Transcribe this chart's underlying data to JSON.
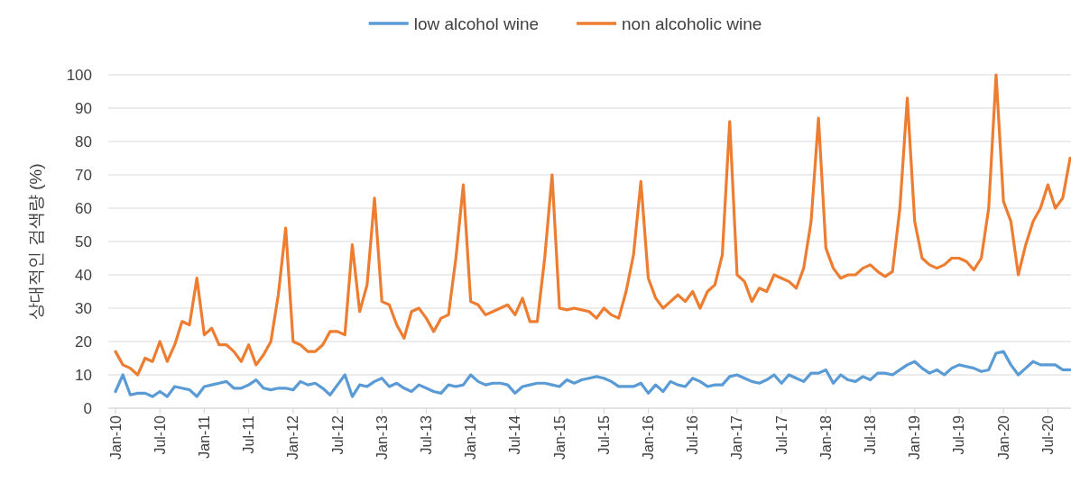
{
  "chart_data": {
    "type": "line",
    "ylabel": "상대적인 검색량 (%)",
    "ylim": [
      0,
      100
    ],
    "yticks": [
      0,
      10,
      20,
      30,
      40,
      50,
      60,
      70,
      80,
      90,
      100
    ],
    "grid": "y",
    "legend": "top",
    "categories": [
      "Jan-10",
      null,
      null,
      null,
      null,
      null,
      "Jul-10",
      null,
      null,
      null,
      null,
      null,
      "Jan-11",
      null,
      null,
      null,
      null,
      null,
      "Jul-11",
      null,
      null,
      null,
      null,
      null,
      "Jan-12",
      null,
      null,
      null,
      null,
      null,
      "Jul-12",
      null,
      null,
      null,
      null,
      null,
      "Jan-13",
      null,
      null,
      null,
      null,
      null,
      "Jul-13",
      null,
      null,
      null,
      null,
      null,
      "Jan-14",
      null,
      null,
      null,
      null,
      null,
      "Jul-14",
      null,
      null,
      null,
      null,
      null,
      "Jan-15",
      null,
      null,
      null,
      null,
      null,
      "Jul-15",
      null,
      null,
      null,
      null,
      null,
      "Jan-16",
      null,
      null,
      null,
      null,
      null,
      "Jul-16",
      null,
      null,
      null,
      null,
      null,
      "Jan-17",
      null,
      null,
      null,
      null,
      null,
      "Jul-17",
      null,
      null,
      null,
      null,
      null,
      "Jan-18",
      null,
      null,
      null,
      null,
      null,
      "Jul-18",
      null,
      null,
      null,
      null,
      null,
      "Jan-19",
      null,
      null,
      null,
      null,
      null,
      "Jul-19",
      null,
      null,
      null,
      null,
      null,
      "Jan-20",
      null,
      null,
      null,
      null,
      null,
      "Jul-20",
      null,
      null,
      null
    ],
    "series": [
      {
        "name": "low alcohol wine",
        "color": "#5b9bd5",
        "values": [
          5,
          10,
          4,
          4.5,
          4.5,
          3.5,
          5,
          3.5,
          6.5,
          6,
          5.5,
          3.5,
          6.5,
          7,
          7.5,
          8,
          6,
          6,
          7,
          8.5,
          6,
          5.5,
          6,
          6,
          5.5,
          8,
          7,
          7.5,
          6,
          4,
          7,
          10,
          3.5,
          7,
          6.5,
          8,
          9,
          6.5,
          7.5,
          6,
          5,
          7,
          6,
          5,
          4.5,
          7,
          6.5,
          7,
          10,
          8,
          7,
          7.5,
          7.5,
          7,
          4.5,
          6.5,
          7,
          7.5,
          7.5,
          7,
          6.5,
          8.5,
          7.5,
          8.5,
          9,
          9.5,
          9,
          8,
          6.5,
          6.5,
          6.5,
          7.5,
          4.5,
          7,
          5,
          8,
          7,
          6.5,
          9,
          8,
          6.5,
          7,
          7,
          9.5,
          10,
          9,
          8,
          7.5,
          8.5,
          10,
          7.5,
          10,
          9,
          8,
          10.5,
          10.5,
          11.5,
          7.5,
          10,
          8.5,
          8,
          9.5,
          8.5,
          10.5,
          10.5,
          10,
          11.5,
          13,
          14,
          12,
          10.5,
          11.5,
          10,
          12,
          13,
          12.5,
          12,
          11,
          11.5,
          16.5,
          17,
          13,
          10,
          12,
          14,
          13,
          13,
          13,
          11.5,
          11.5
        ]
      },
      {
        "name": "non alcoholic wine",
        "color": "#ed7d31",
        "values": [
          17,
          13,
          12,
          10,
          15,
          14,
          20,
          14,
          19,
          26,
          25,
          39,
          22,
          24,
          19,
          19,
          17,
          14,
          19,
          13,
          16,
          20,
          34,
          54,
          20,
          19,
          17,
          17,
          19,
          23,
          23,
          22,
          49,
          29,
          37,
          63,
          32,
          31,
          25,
          21,
          29,
          30,
          27,
          23,
          27,
          28,
          45,
          67,
          32,
          31,
          28,
          29,
          30,
          31,
          28,
          33,
          26,
          26,
          45,
          70,
          30,
          29.5,
          30,
          29.5,
          29,
          27,
          30,
          28,
          27,
          35,
          46,
          68,
          39,
          33,
          30,
          32,
          34,
          32,
          35,
          30,
          35,
          37,
          46,
          86,
          40,
          38,
          32,
          36,
          35,
          40,
          39,
          38,
          36,
          42,
          56,
          87,
          48,
          42,
          39,
          40,
          40,
          42,
          43,
          41,
          39.5,
          41,
          60,
          93,
          56,
          45,
          43,
          42,
          43,
          45,
          45,
          44,
          41.5,
          45,
          60,
          100,
          62,
          56,
          40,
          49,
          56,
          60,
          67,
          60,
          63,
          75
        ]
      }
    ]
  }
}
